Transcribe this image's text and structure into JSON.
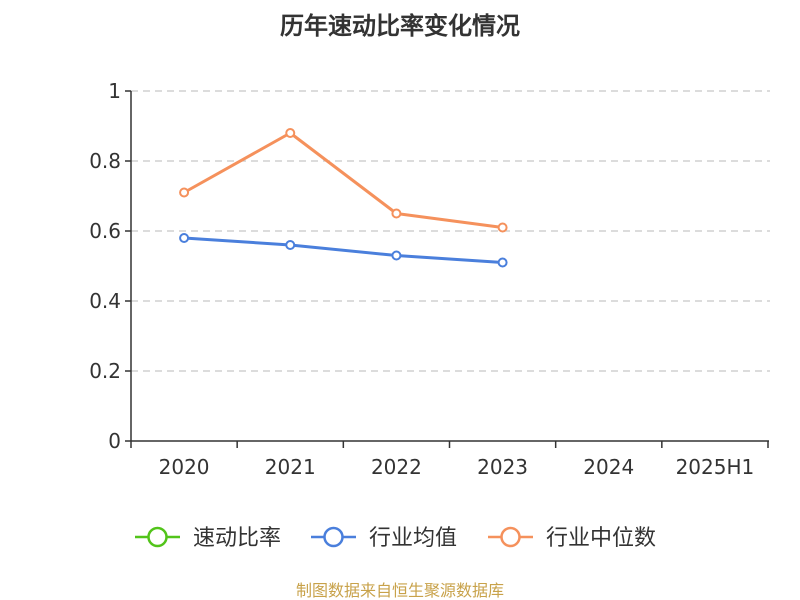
{
  "chart_data": {
    "type": "line",
    "title": "历年速动比率变化情况",
    "categories": [
      "2020",
      "2021",
      "2022",
      "2023",
      "2024",
      "2025H1"
    ],
    "ylim": [
      0,
      1
    ],
    "yticks": [
      "0",
      "0.2",
      "0.4",
      "0.6",
      "0.8",
      "1"
    ],
    "grid": true,
    "legend_position": "bottom",
    "series": [
      {
        "name": "速动比率",
        "color": "#52c41a",
        "values": [
          null,
          null,
          null,
          null,
          null,
          null
        ]
      },
      {
        "name": "行业均值",
        "color": "#4a7fdc",
        "values": [
          0.58,
          0.56,
          0.53,
          0.51,
          null,
          null
        ]
      },
      {
        "name": "行业中位数",
        "color": "#f5915c",
        "values": [
          0.71,
          0.88,
          0.65,
          0.61,
          null,
          null
        ]
      }
    ]
  },
  "footer": {
    "source": "制图数据来自恒生聚源数据库"
  }
}
